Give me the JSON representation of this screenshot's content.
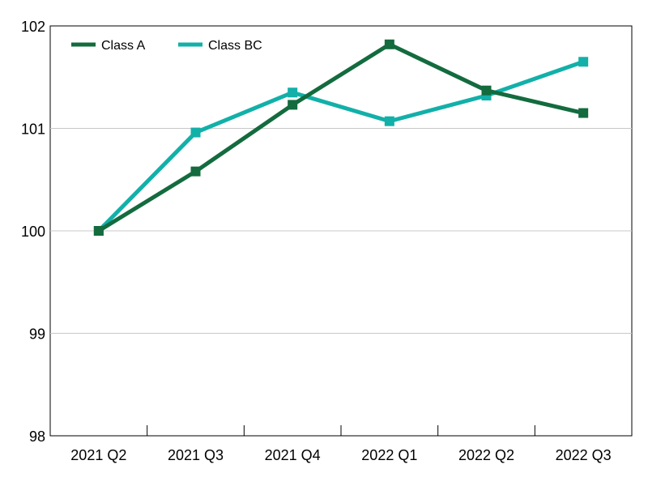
{
  "chart_data": {
    "type": "line",
    "categories": [
      "2021 Q2",
      "2021 Q3",
      "2021 Q4",
      "2022 Q1",
      "2022 Q2",
      "2022 Q3"
    ],
    "series": [
      {
        "name": "Class A",
        "color": "#136b3e",
        "values": [
          100.0,
          100.58,
          101.23,
          101.82,
          101.37,
          101.15
        ]
      },
      {
        "name": "Class BC",
        "color": "#12b0a9",
        "values": [
          100.0,
          100.96,
          101.35,
          101.07,
          101.32,
          101.65
        ]
      }
    ],
    "ylim": [
      98,
      102
    ],
    "yticks": [
      98,
      99,
      100,
      101,
      102
    ],
    "grid": true,
    "legend": "top-left",
    "title": "",
    "xlabel": "",
    "ylabel": ""
  }
}
